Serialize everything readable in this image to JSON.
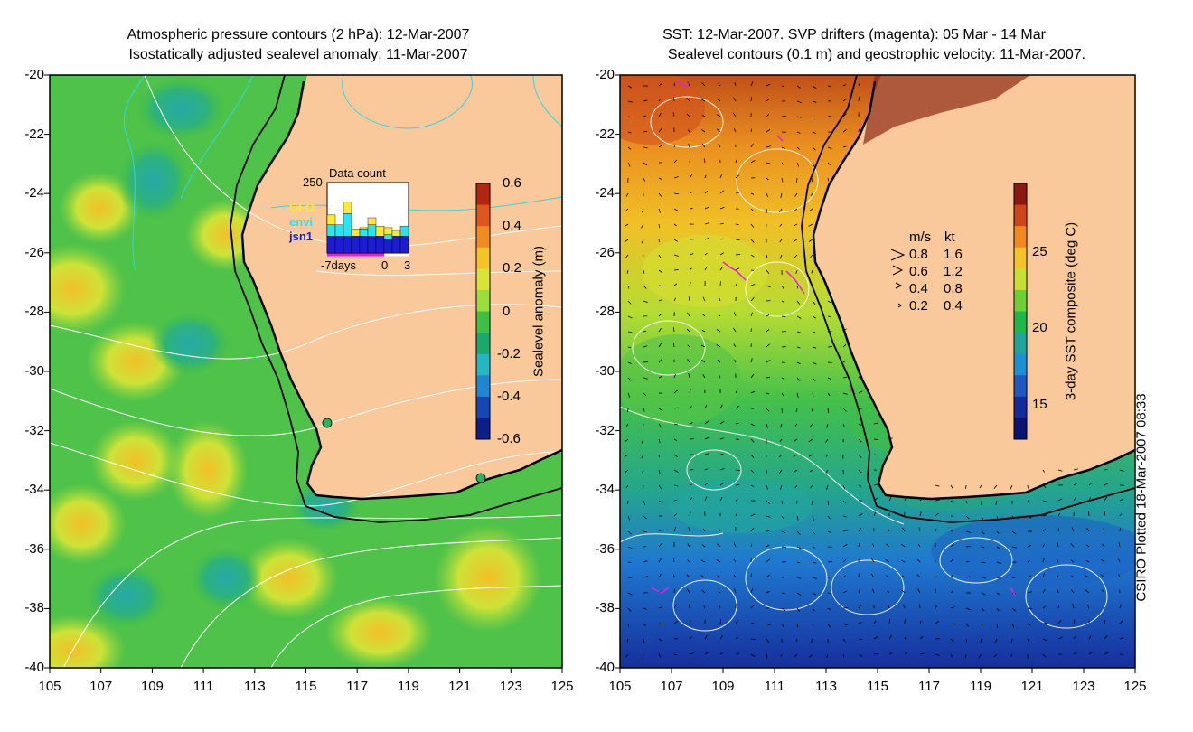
{
  "left_panel": {
    "title_line1": "Atmospheric pressure contours (2 hPa): 12-Mar-2007",
    "title_line2": "Isostatically adjusted sealevel anomaly: 11-Mar-2007",
    "x_ticks": [
      "105",
      "107",
      "109",
      "111",
      "113",
      "115",
      "117",
      "119",
      "121",
      "123",
      "125"
    ],
    "y_ticks": [
      "-20",
      "-22",
      "-24",
      "-26",
      "-28",
      "-30",
      "-32",
      "-34",
      "-36",
      "-38",
      "-40"
    ],
    "colorbar": {
      "label": "Sealevel anomaly (m)",
      "ticks": [
        "0.6",
        "0.4",
        "0.2",
        "0",
        "-0.2",
        "-0.4",
        "-0.6"
      ],
      "colors": [
        "#b2260e",
        "#e0561a",
        "#f08c1e",
        "#f3c426",
        "#d6e535",
        "#9ade3c",
        "#3fbf45",
        "#1aa86d",
        "#25b5c3",
        "#1f86d2",
        "#1546b4",
        "#0b1f86"
      ]
    },
    "inset": {
      "title": "Data count",
      "ymax_label": "250",
      "legend": [
        {
          "name": "GFO",
          "color": "#ffe83a"
        },
        {
          "name": "envi",
          "color": "#28e6ef"
        },
        {
          "name": "jsn1",
          "color": "#1c1cd2"
        }
      ],
      "x_labels": [
        "-7days",
        "0",
        "3"
      ],
      "bars": [
        {
          "jsn1": 60,
          "envi": 40,
          "gfo": 35
        },
        {
          "jsn1": 60,
          "envi": 40,
          "gfo": 0
        },
        {
          "jsn1": 60,
          "envi": 80,
          "gfo": 40
        },
        {
          "jsn1": 60,
          "envi": 0,
          "gfo": 25
        },
        {
          "jsn1": 60,
          "envi": 25,
          "gfo": 5
        },
        {
          "jsn1": 60,
          "envi": 40,
          "gfo": 25
        },
        {
          "jsn1": 60,
          "envi": 0,
          "gfo": 35
        },
        {
          "jsn1": 50,
          "envi": 15,
          "gfo": 25
        },
        {
          "jsn1": 60,
          "envi": 0,
          "gfo": 20
        },
        {
          "jsn1": 60,
          "envi": 35,
          "gfo": 0
        }
      ]
    }
  },
  "right_panel": {
    "title_line1": "SST: 12-Mar-2007. SVP drifters (magenta): 05 Mar - 14 Mar",
    "title_line2": "Sealevel contours (0.1 m) and geostrophic velocity: 11-Mar-2007.",
    "x_ticks": [
      "105",
      "107",
      "109",
      "111",
      "113",
      "115",
      "117",
      "119",
      "121",
      "123",
      "125"
    ],
    "y_ticks": [
      "-20",
      "-22",
      "-24",
      "-26",
      "-28",
      "-30",
      "-32",
      "-34",
      "-36",
      "-38",
      "-40"
    ],
    "colorbar": {
      "label": "3-day SST composite (deg C)",
      "ticks": [
        "25",
        "20",
        "15"
      ],
      "colors": [
        "#8b1a0e",
        "#d0441a",
        "#ee8a1e",
        "#f4c425",
        "#c7e030",
        "#6ccf3a",
        "#21b54d",
        "#1fa39a",
        "#1e8fd3",
        "#1c58c0",
        "#142c99",
        "#0a1470"
      ]
    },
    "velocity_legend": {
      "header_ms": "m/s",
      "header_kt": "kt",
      "rows": [
        {
          "ms": "0.8",
          "kt": "1.6"
        },
        {
          "ms": "0.6",
          "kt": "1.2"
        },
        {
          "ms": "0.4",
          "kt": "0.8"
        },
        {
          "ms": "0.2",
          "kt": "0.4"
        }
      ]
    }
  },
  "footer": {
    "plotted": "CSIRO Plotted 18-Mar-2007 08:33"
  },
  "colors": {
    "land": "#f9c99b",
    "ocean_left": "#4fc24a",
    "coast": "#000000",
    "pressure_contour": "#ffffff",
    "cyan_contour": "#35d6e0",
    "drifter": "#e020e0"
  }
}
